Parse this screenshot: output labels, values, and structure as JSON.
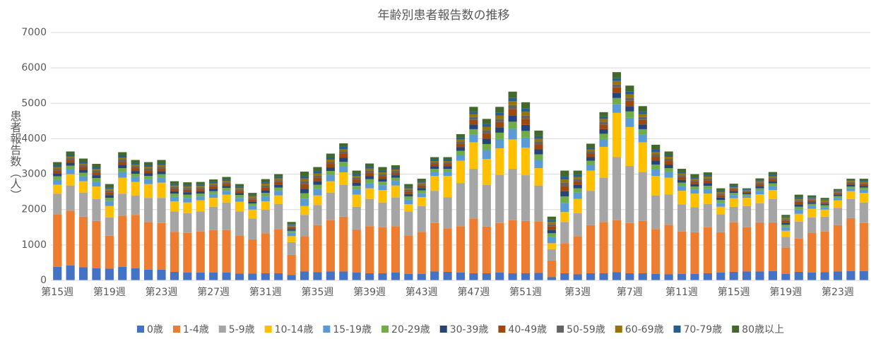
{
  "chart_data": {
    "type": "stacked_bar",
    "title": "年齢別患者報告数の推移",
    "y_label": "患者報告数（人）",
    "categories": [
      "第15週",
      null,
      null,
      null,
      "第19週",
      null,
      null,
      null,
      "第23週",
      null,
      null,
      null,
      "第27週",
      null,
      null,
      null,
      "第31週",
      null,
      null,
      null,
      "第35週",
      null,
      null,
      null,
      "第39週",
      null,
      null,
      null,
      "第43週",
      null,
      null,
      null,
      "第47週",
      null,
      null,
      null,
      "第51週",
      null,
      null,
      null,
      "第3週",
      null,
      null,
      null,
      "第7週",
      null,
      null,
      null,
      "第11週",
      null,
      null,
      null,
      "第15週",
      null,
      null,
      null,
      "第19週",
      null,
      null,
      null,
      "第23週",
      null,
      null
    ],
    "ylim": [
      0,
      7000
    ],
    "yticks": [
      0,
      1000,
      2000,
      3000,
      4000,
      5000,
      6000,
      7000
    ],
    "grid": true,
    "legend": "bottom",
    "series": [
      {
        "name": "0歳",
        "color": "#4472c4",
        "values": [
          380,
          420,
          370,
          340,
          330,
          380,
          340,
          300,
          300,
          240,
          220,
          220,
          220,
          220,
          190,
          190,
          200,
          200,
          150,
          250,
          230,
          250,
          250,
          220,
          200,
          200,
          220,
          180,
          180,
          250,
          240,
          220,
          200,
          200,
          220,
          200,
          200,
          210,
          90,
          200,
          170,
          200,
          200,
          230,
          200,
          200,
          180,
          170,
          180,
          180,
          200,
          220,
          240,
          250,
          250,
          260,
          180,
          240,
          220,
          230,
          250,
          260,
          260
        ]
      },
      {
        "name": "1-4歳",
        "color": "#ed7d31",
        "values": [
          1490,
          1550,
          1430,
          1340,
          930,
          1450,
          1510,
          1350,
          1320,
          1130,
          1120,
          1160,
          1200,
          1200,
          1080,
          970,
          1130,
          1250,
          570,
          1000,
          1330,
          1450,
          1550,
          1220,
          1330,
          1300,
          1310,
          1090,
          1190,
          1370,
          1230,
          1310,
          1550,
          1320,
          1400,
          1500,
          1480,
          1460,
          470,
          850,
          1080,
          1360,
          1450,
          1470,
          1420,
          1480,
          1270,
          1400,
          1200,
          1180,
          1300,
          1140,
          1400,
          1250,
          1390,
          1380,
          750,
          940,
          1130,
          1150,
          1310,
          1500,
          1360
        ]
      },
      {
        "name": "5-9歳",
        "color": "#a5a5a5",
        "values": [
          580,
          710,
          680,
          620,
          520,
          620,
          550,
          680,
          710,
          580,
          560,
          570,
          660,
          780,
          680,
          590,
          670,
          710,
          360,
          600,
          570,
          780,
          900,
          640,
          770,
          700,
          810,
          680,
          730,
          910,
          880,
          1220,
          1400,
          1180,
          1360,
          1450,
          1290,
          1010,
          320,
          600,
          650,
          970,
          1250,
          1780,
          1610,
          1380,
          950,
          860,
          770,
          710,
          660,
          510,
          440,
          600,
          540,
          660,
          300,
          480,
          430,
          420,
          490,
          540,
          580
        ]
      },
      {
        "name": "10-14歳",
        "color": "#ffc000",
        "values": [
          250,
          320,
          320,
          350,
          320,
          450,
          380,
          390,
          430,
          280,
          300,
          310,
          250,
          220,
          270,
          250,
          230,
          240,
          170,
          250,
          270,
          320,
          350,
          340,
          300,
          350,
          340,
          200,
          250,
          420,
          600,
          630,
          750,
          730,
          750,
          830,
          780,
          490,
          170,
          280,
          400,
          570,
          870,
          1250,
          1100,
          840,
          550,
          470,
          380,
          380,
          290,
          210,
          240,
          230,
          250,
          250,
          170,
          220,
          240,
          200,
          210,
          220,
          270
        ]
      },
      {
        "name": "15-19歳",
        "color": "#5b9bd5",
        "values": [
          140,
          140,
          140,
          140,
          140,
          160,
          140,
          140,
          140,
          130,
          130,
          110,
          110,
          110,
          110,
          100,
          140,
          130,
          90,
          210,
          180,
          170,
          180,
          150,
          150,
          140,
          130,
          130,
          110,
          120,
          120,
          170,
          220,
          250,
          260,
          300,
          280,
          230,
          170,
          260,
          180,
          170,
          220,
          250,
          260,
          220,
          190,
          160,
          140,
          120,
          130,
          110,
          90,
          60,
          100,
          110,
          100,
          120,
          80,
          70,
          70,
          80,
          90
        ]
      },
      {
        "name": "20-29歳",
        "color": "#70ad47",
        "values": [
          100,
          100,
          100,
          100,
          90,
          110,
          90,
          90,
          100,
          90,
          90,
          80,
          80,
          80,
          80,
          70,
          100,
          90,
          60,
          150,
          120,
          120,
          120,
          100,
          110,
          100,
          90,
          90,
          80,
          80,
          80,
          110,
          150,
          170,
          180,
          200,
          190,
          160,
          110,
          180,
          120,
          110,
          150,
          170,
          180,
          150,
          130,
          110,
          90,
          80,
          90,
          80,
          60,
          40,
          70,
          80,
          70,
          80,
          60,
          50,
          50,
          50,
          60
        ]
      },
      {
        "name": "30-39歳",
        "color": "#264478",
        "values": [
          80,
          80,
          80,
          80,
          80,
          90,
          80,
          80,
          80,
          70,
          70,
          70,
          70,
          60,
          60,
          60,
          80,
          80,
          50,
          130,
          100,
          100,
          110,
          90,
          90,
          80,
          70,
          70,
          70,
          70,
          70,
          100,
          130,
          150,
          150,
          180,
          170,
          140,
          100,
          150,
          100,
          100,
          130,
          150,
          150,
          130,
          110,
          100,
          80,
          70,
          80,
          70,
          50,
          40,
          60,
          60,
          60,
          70,
          50,
          40,
          40,
          50,
          50
        ]
      },
      {
        "name": "40-49歳",
        "color": "#9e480e",
        "values": [
          80,
          80,
          80,
          80,
          80,
          90,
          80,
          80,
          80,
          70,
          70,
          70,
          70,
          60,
          60,
          60,
          80,
          80,
          50,
          130,
          100,
          100,
          110,
          90,
          90,
          80,
          70,
          70,
          70,
          70,
          70,
          100,
          130,
          150,
          150,
          180,
          170,
          140,
          100,
          150,
          100,
          100,
          130,
          150,
          150,
          130,
          110,
          100,
          80,
          70,
          80,
          70,
          50,
          40,
          60,
          60,
          60,
          70,
          50,
          40,
          40,
          50,
          50
        ]
      },
      {
        "name": "50-59歳",
        "color": "#636363",
        "values": [
          50,
          50,
          50,
          50,
          50,
          60,
          50,
          50,
          50,
          50,
          50,
          40,
          40,
          40,
          40,
          40,
          50,
          50,
          30,
          80,
          60,
          60,
          70,
          50,
          60,
          50,
          50,
          50,
          40,
          40,
          40,
          60,
          80,
          90,
          90,
          110,
          100,
          80,
          60,
          90,
          60,
          60,
          80,
          90,
          90,
          80,
          70,
          60,
          50,
          40,
          50,
          40,
          30,
          20,
          40,
          40,
          40,
          40,
          30,
          30,
          30,
          30,
          30
        ]
      },
      {
        "name": "60-69歳",
        "color": "#997300",
        "values": [
          50,
          50,
          50,
          50,
          50,
          60,
          50,
          50,
          50,
          40,
          40,
          40,
          40,
          40,
          40,
          40,
          50,
          50,
          30,
          80,
          60,
          60,
          70,
          50,
          60,
          50,
          40,
          40,
          40,
          40,
          40,
          60,
          80,
          90,
          90,
          110,
          100,
          80,
          60,
          90,
          60,
          60,
          80,
          90,
          90,
          80,
          70,
          60,
          50,
          40,
          50,
          40,
          30,
          20,
          40,
          40,
          40,
          40,
          30,
          30,
          30,
          30,
          30
        ]
      },
      {
        "name": "70-79歳",
        "color": "#255e91",
        "values": [
          50,
          50,
          50,
          50,
          40,
          50,
          40,
          40,
          50,
          40,
          40,
          40,
          40,
          40,
          40,
          30,
          40,
          40,
          30,
          70,
          60,
          60,
          60,
          50,
          50,
          50,
          40,
          40,
          40,
          40,
          40,
          50,
          70,
          80,
          80,
          90,
          90,
          70,
          50,
          80,
          60,
          50,
          70,
          80,
          80,
          70,
          60,
          50,
          40,
          40,
          40,
          40,
          30,
          20,
          30,
          40,
          30,
          40,
          30,
          20,
          20,
          20,
          30
        ]
      },
      {
        "name": "80歳以上",
        "color": "#43682b",
        "values": [
          90,
          90,
          90,
          90,
          90,
          100,
          90,
          90,
          90,
          80,
          80,
          70,
          70,
          70,
          70,
          70,
          90,
          80,
          60,
          120,
          120,
          110,
          100,
          100,
          90,
          100,
          80,
          80,
          70,
          70,
          70,
          100,
          140,
          150,
          170,
          180,
          180,
          160,
          100,
          170,
          120,
          110,
          120,
          170,
          170,
          160,
          140,
          100,
          90,
          90,
          80,
          70,
          70,
          30,
          50,
          80,
          50,
          80,
          50,
          50,
          40,
          40,
          60
        ]
      }
    ]
  }
}
